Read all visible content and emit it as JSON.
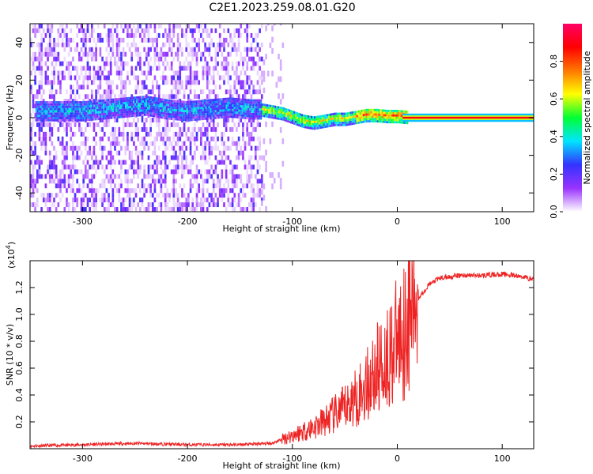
{
  "title": "C2E1.2023.259.08.01.G20",
  "chart_data": [
    {
      "type": "heatmap",
      "xlabel": "Height of straight line (km)",
      "ylabel": "Frequency (Hz)",
      "xlim": [
        -350,
        130
      ],
      "ylim": [
        -50,
        50
      ],
      "xticks": [
        -300,
        -200,
        -100,
        0,
        100
      ],
      "xtick_labels": [
        "-300",
        "-200",
        "-100",
        "0",
        "100"
      ],
      "yticks": [
        -40,
        -20,
        0,
        20,
        40
      ],
      "ytick_labels": [
        "-40",
        "-20",
        "0",
        "20",
        "40"
      ],
      "colorbar": {
        "label": "Normalized spectral amplitude",
        "range": [
          0,
          1
        ],
        "ticks": [
          0,
          0.2,
          0.4,
          0.6,
          0.8
        ],
        "tick_labels": [
          "0.0",
          "0.2",
          "0.4",
          "0.6",
          "0.8"
        ],
        "colors": [
          "#ffffff",
          "#9933ff",
          "#3333ff",
          "#00e5ff",
          "#00ff33",
          "#ffff00",
          "#ff7700",
          "#ff0000",
          "#ff0066"
        ]
      },
      "signal_track": [
        {
          "x": -300,
          "y": 3
        },
        {
          "x": -280,
          "y": 4
        },
        {
          "x": -260,
          "y": 5
        },
        {
          "x": -240,
          "y": 6
        },
        {
          "x": -220,
          "y": 4
        },
        {
          "x": -200,
          "y": 3
        },
        {
          "x": -180,
          "y": 4
        },
        {
          "x": -160,
          "y": 5
        },
        {
          "x": -140,
          "y": 4
        },
        {
          "x": -130,
          "y": 4
        },
        {
          "x": -120,
          "y": 3
        },
        {
          "x": -110,
          "y": 2
        },
        {
          "x": -100,
          "y": 0
        },
        {
          "x": -90,
          "y": -2
        },
        {
          "x": -80,
          "y": -3
        },
        {
          "x": -70,
          "y": -2
        },
        {
          "x": -60,
          "y": -1
        },
        {
          "x": -50,
          "y": -1
        },
        {
          "x": -40,
          "y": 0
        },
        {
          "x": -30,
          "y": 1
        },
        {
          "x": -20,
          "y": 1
        },
        {
          "x": -10,
          "y": 0.5
        },
        {
          "x": 0,
          "y": 0.5
        },
        {
          "x": 10,
          "y": 0
        },
        {
          "x": 130,
          "y": 0
        }
      ]
    },
    {
      "type": "line",
      "xlabel": "Height of straight line (km)",
      "ylabel": "SNR (10 * v/v)",
      "multiplier_label": "(x10",
      "multiplier_exp": "4",
      "xlim": [
        -350,
        130
      ],
      "ylim": [
        0,
        1.4
      ],
      "xticks": [
        -300,
        -200,
        -100,
        0,
        100
      ],
      "xtick_labels": [
        "-300",
        "-200",
        "-100",
        "0",
        "100"
      ],
      "yticks": [
        0.2,
        0.4,
        0.6,
        0.8,
        1.0,
        1.2
      ],
      "ytick_labels": [
        "0.2",
        "0.4",
        "0.6",
        "0.8",
        "1.0",
        "1.2"
      ],
      "series": [
        {
          "color": "#ee2222",
          "x": [
            -350,
            -300,
            -250,
            -200,
            -150,
            -120,
            -110,
            -100,
            -90,
            -80,
            -70,
            -60,
            -50,
            -40,
            -30,
            -20,
            -10,
            0,
            10,
            20,
            30,
            40,
            60,
            80,
            100,
            120,
            130
          ],
          "y": [
            0.02,
            0.03,
            0.04,
            0.03,
            0.03,
            0.04,
            0.07,
            0.1,
            0.13,
            0.16,
            0.2,
            0.25,
            0.3,
            0.38,
            0.46,
            0.58,
            0.68,
            0.8,
            0.95,
            1.12,
            1.22,
            1.27,
            1.29,
            1.29,
            1.3,
            1.28,
            1.26
          ]
        }
      ]
    }
  ]
}
